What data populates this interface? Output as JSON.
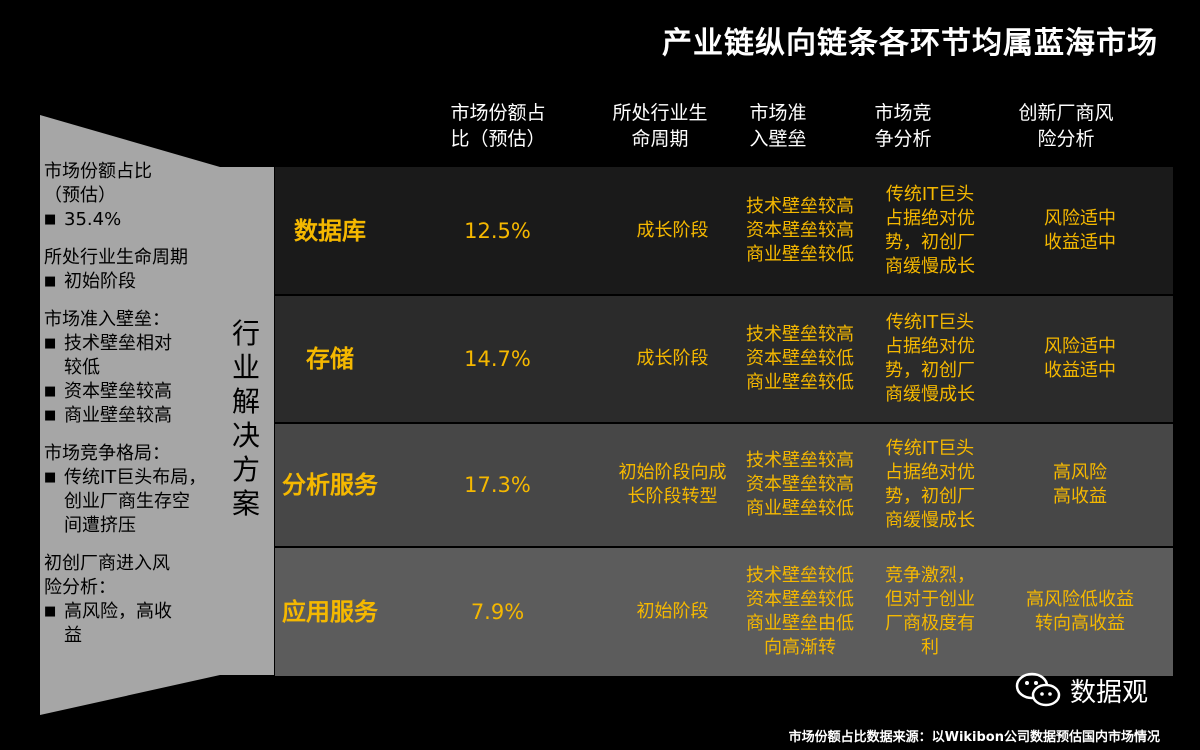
{
  "title": "产业链纵向链条各环节均属蓝海市场",
  "columns": [
    "市场份额占比（预估）",
    "所处行业生命周期",
    "市场准入壁垒",
    "市场竞争分析",
    "创新厂商风险分析"
  ],
  "columns_lines": [
    [
      "市场份额占",
      "比（预估）"
    ],
    [
      "所处行业生",
      "命周期"
    ],
    [
      "市场准",
      "入壁垒"
    ],
    [
      "市场竞",
      "争分析"
    ],
    [
      "创新厂商风",
      "险分析"
    ]
  ],
  "left_panel": {
    "groups": [
      {
        "heading": [
          "市场份额占比",
          "（预估）"
        ],
        "bullets": [
          [
            "35.4%"
          ]
        ]
      },
      {
        "heading": [
          "所处行业生命周期"
        ],
        "bullets": [
          [
            "初始阶段"
          ]
        ]
      },
      {
        "heading": [
          "市场准入壁垒："
        ],
        "bullets": [
          [
            "技术壁垒相对",
            "较低"
          ],
          [
            "资本壁垒较高"
          ],
          [
            "商业壁垒较高"
          ]
        ]
      },
      {
        "heading": [
          "市场竞争格局："
        ],
        "bullets": [
          [
            "传统IT巨头布局，",
            "创业厂商生存空",
            "间遭挤压"
          ]
        ]
      },
      {
        "heading": [
          "初创厂商进入风",
          "险分析："
        ],
        "bullets": [
          [
            "高风险，高收",
            "益"
          ]
        ]
      }
    ]
  },
  "vertical_tab": "行业解决方案",
  "rows": [
    {
      "name": "数据库",
      "share": "12.5%",
      "lifecycle": [
        "成长阶段"
      ],
      "barrier": [
        "技术壁垒较高",
        "资本壁垒较高",
        "商业壁垒较低"
      ],
      "competition": [
        "传统IT巨头",
        "占据绝对优",
        "势，初创厂",
        "商缓慢成长"
      ],
      "risk": [
        "风险适中",
        "收益适中"
      ]
    },
    {
      "name": "存储",
      "share": "14.7%",
      "lifecycle": [
        "成长阶段"
      ],
      "barrier": [
        "技术壁垒较高",
        "资本壁垒较低",
        "商业壁垒较低"
      ],
      "competition": [
        "传统IT巨头",
        "占据绝对优",
        "势，初创厂",
        "商缓慢成长"
      ],
      "risk": [
        "风险适中",
        "收益适中"
      ]
    },
    {
      "name": "分析服务",
      "share": "17.3%",
      "lifecycle": [
        "初始阶段向成",
        "长阶段转型"
      ],
      "barrier": [
        "技术壁垒较高",
        "资本壁垒较高",
        "商业壁垒较低"
      ],
      "competition": [
        "传统IT巨头",
        "占据绝对优",
        "势，初创厂",
        "商缓慢成长"
      ],
      "risk": [
        "高风险",
        "高收益"
      ]
    },
    {
      "name": "应用服务",
      "share": "7.9%",
      "lifecycle": [
        "初始阶段"
      ],
      "barrier": [
        "技术壁垒较低",
        "资本壁垒较低",
        "商业壁垒由低",
        "向高渐转"
      ],
      "competition": [
        "竞争激烈，",
        "但对于创业",
        "厂商极度有",
        "利"
      ],
      "risk": [
        "高风险低收益",
        "转向高收益"
      ]
    }
  ],
  "watermark": "数据观",
  "footnote": "市场份额占比数据来源：以Wikibon公司数据预估国内市场情况",
  "colors": {
    "accent": "#f5b800",
    "row_bgs": [
      "#1a1a1a",
      "#2b2b2b",
      "#474747",
      "#5c5c5c"
    ],
    "panel": "#a6a6a6"
  }
}
